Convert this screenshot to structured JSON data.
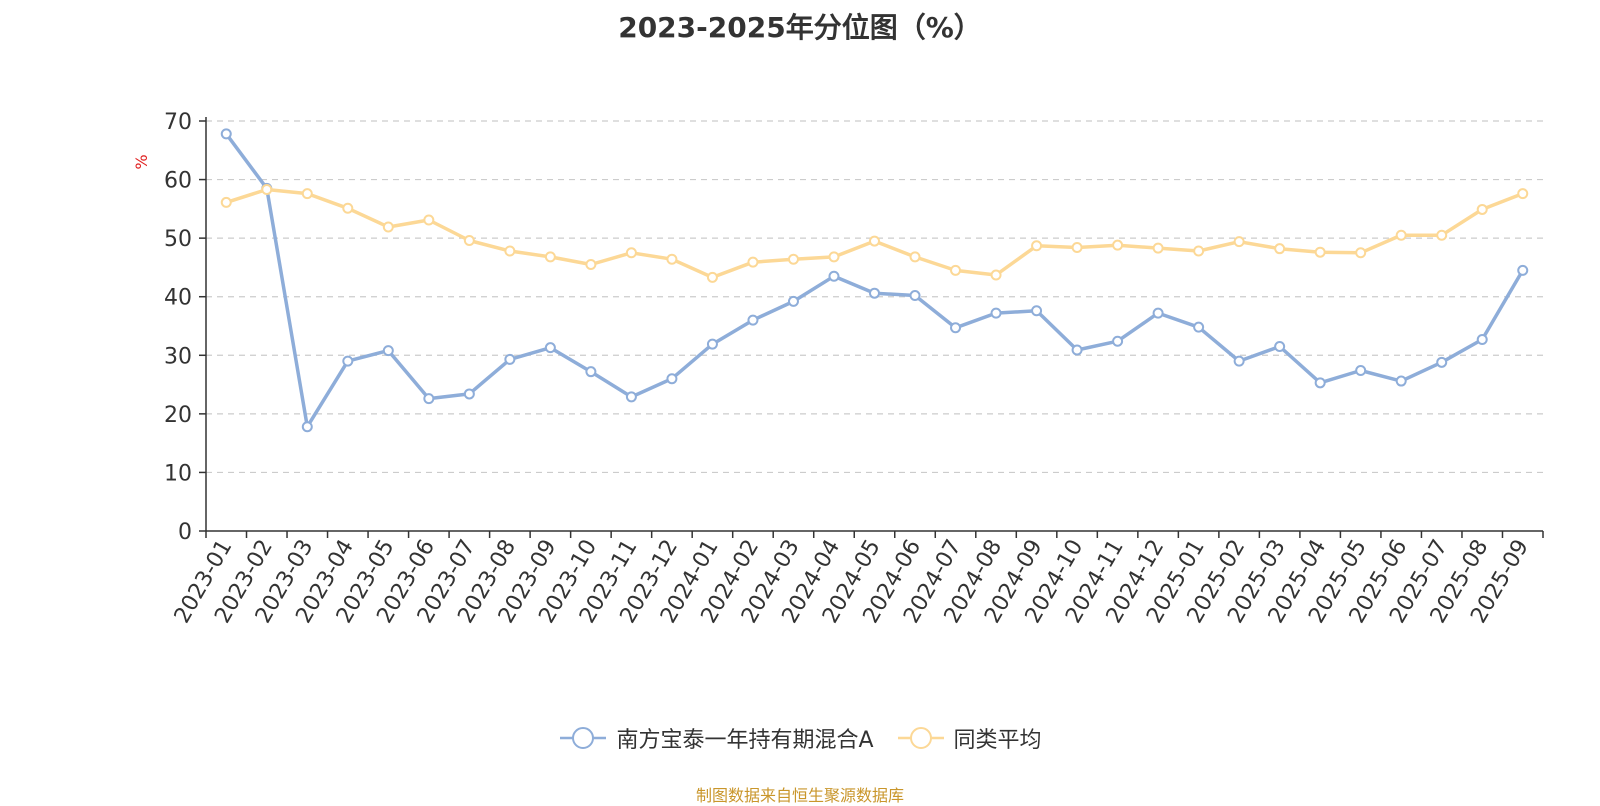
{
  "chart_data": {
    "type": "line",
    "title": "2023-2025年分位图（%）",
    "ylabel": "%",
    "ylim": [
      0,
      70
    ],
    "yticks": [
      0,
      10,
      20,
      30,
      40,
      50,
      60,
      70
    ],
    "grid": true,
    "legend_position": "bottom",
    "categories": [
      "2023-01",
      "2023-02",
      "2023-03",
      "2023-04",
      "2023-05",
      "2023-06",
      "2023-07",
      "2023-08",
      "2023-09",
      "2023-10",
      "2023-11",
      "2023-12",
      "2024-01",
      "2024-02",
      "2024-03",
      "2024-04",
      "2024-05",
      "2024-06",
      "2024-07",
      "2024-08",
      "2024-09",
      "2024-10",
      "2024-11",
      "2024-12",
      "2025-01",
      "2025-02",
      "2025-03",
      "2025-04",
      "2025-05",
      "2025-06",
      "2025-07",
      "2025-08",
      "2025-09"
    ],
    "series": [
      {
        "name": "南方宝泰一年持有期混合A",
        "color": "#8eadd9",
        "values": [
          67.8,
          58.5,
          17.8,
          29.0,
          30.8,
          22.6,
          23.4,
          29.3,
          31.3,
          27.2,
          22.9,
          26.0,
          31.9,
          36.0,
          39.2,
          43.5,
          40.6,
          40.2,
          34.7,
          37.2,
          37.6,
          30.9,
          32.4,
          37.2,
          34.8,
          29.0,
          31.5,
          25.3,
          27.4,
          25.6,
          28.8,
          32.7,
          44.5
        ]
      },
      {
        "name": "同类平均",
        "color": "#fcd896",
        "values": [
          56.1,
          58.3,
          57.6,
          55.1,
          51.9,
          53.1,
          49.6,
          47.8,
          46.8,
          45.5,
          47.5,
          46.4,
          43.3,
          45.9,
          46.4,
          46.8,
          49.5,
          46.8,
          44.5,
          43.7,
          48.7,
          48.4,
          48.8,
          48.3,
          47.8,
          49.4,
          48.2,
          47.6,
          47.5,
          50.5,
          50.5,
          54.9,
          57.6
        ]
      }
    ]
  },
  "footer": {
    "source": "制图数据来自恒生聚源数据库"
  }
}
